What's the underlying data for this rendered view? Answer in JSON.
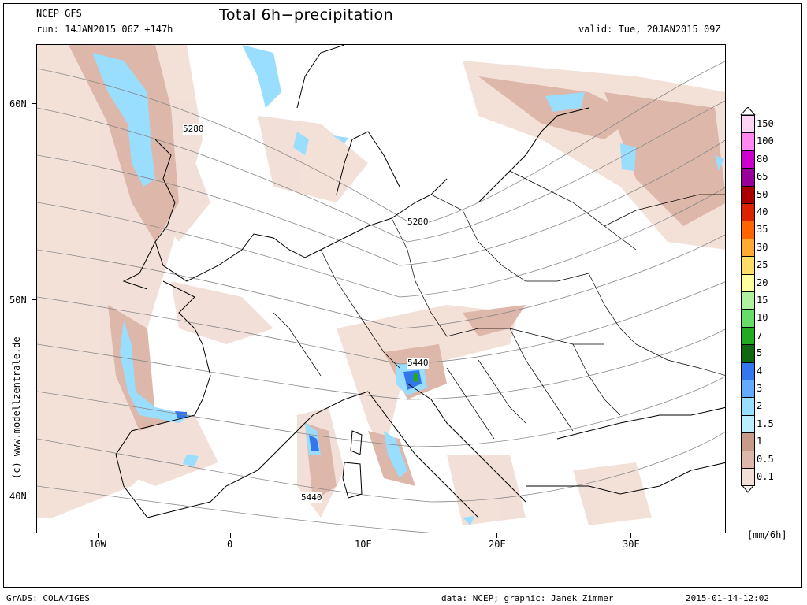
{
  "header": {
    "model": "NCEP GFS",
    "run": "run: 14JAN2015 06Z +147h",
    "title": "Total 6h−precipitation",
    "valid": "valid: Tue, 20JAN2015 09Z"
  },
  "axes": {
    "lat_labels": [
      "60N",
      "50N",
      "40N"
    ],
    "lon_labels": [
      "10W",
      "0",
      "10E",
      "20E",
      "30E"
    ]
  },
  "contour_labels": [
    "5280",
    "5280",
    "5440",
    "5440"
  ],
  "watermark": "(c) www.modellzentrale.de",
  "legend": {
    "unit": "[mm/6h]",
    "levels": [
      {
        "label": "150",
        "color": "#ffd5f5"
      },
      {
        "label": "100",
        "color": "#ff88f0"
      },
      {
        "label": "80",
        "color": "#cc00cc"
      },
      {
        "label": "65",
        "color": "#990099"
      },
      {
        "label": "50",
        "color": "#aa0000"
      },
      {
        "label": "40",
        "color": "#dd2200"
      },
      {
        "label": "35",
        "color": "#ff6600"
      },
      {
        "label": "30",
        "color": "#ffaa33"
      },
      {
        "label": "25",
        "color": "#ffdd66"
      },
      {
        "label": "20",
        "color": "#ffffa0"
      },
      {
        "label": "15",
        "color": "#b0f0a0"
      },
      {
        "label": "10",
        "color": "#66dd66"
      },
      {
        "label": "7",
        "color": "#22aa22"
      },
      {
        "label": "5",
        "color": "#116611"
      },
      {
        "label": "4",
        "color": "#3377ee"
      },
      {
        "label": "3",
        "color": "#66aaff"
      },
      {
        "label": "2",
        "color": "#99ddff"
      },
      {
        "label": "1.5",
        "color": "#bbeeff"
      },
      {
        "label": "1",
        "color": "#c89a8a"
      },
      {
        "label": "0.5",
        "color": "#dcb7aa"
      },
      {
        "label": "0.1",
        "color": "#f2dfd6"
      }
    ],
    "bottom_color": "#faf0ea"
  },
  "footer": {
    "left": "GrADS: COLA/IGES",
    "credit": "data: NCEP; graphic: Janek Zimmer",
    "timestamp": "2015-01-14-12:02"
  }
}
